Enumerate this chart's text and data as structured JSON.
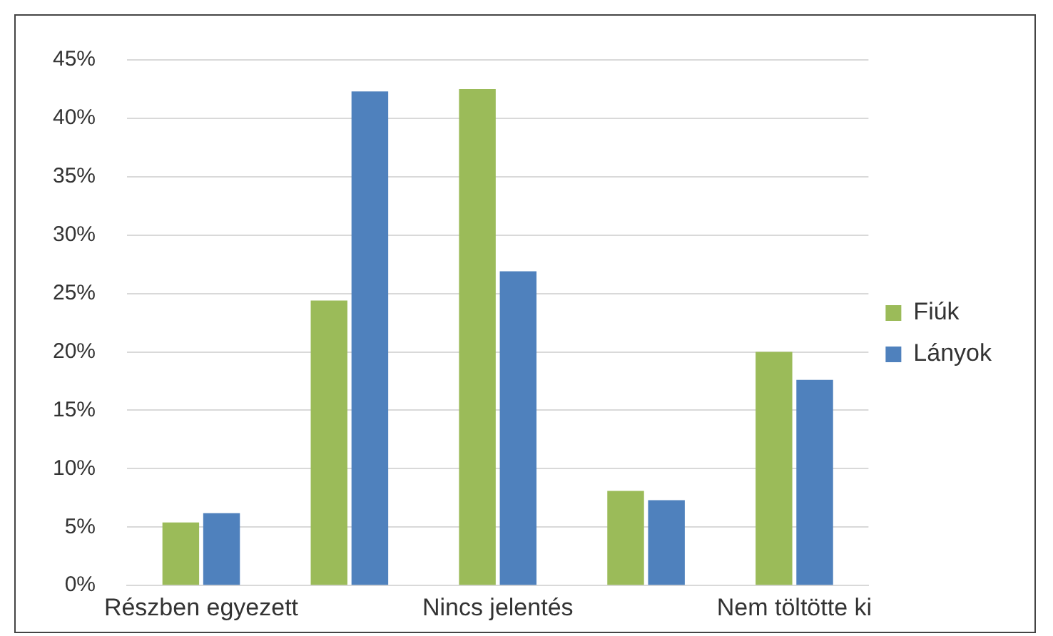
{
  "chart_data": {
    "type": "bar",
    "categories": [
      "Részben egyezett",
      null,
      "Nincs jelentés",
      null,
      "Nem töltötte ki"
    ],
    "series": [
      {
        "name": "Fiúk",
        "color": "#9bbb59",
        "values": [
          5.4,
          24.4,
          42.5,
          8.1,
          20.0
        ]
      },
      {
        "name": "Lányok",
        "color": "#4f81bd",
        "values": [
          6.2,
          42.3,
          26.9,
          7.3,
          17.6
        ]
      }
    ],
    "ylim": [
      0,
      45
    ],
    "yticks": [
      {
        "value": 0,
        "label": "0%"
      },
      {
        "value": 5,
        "label": "5%"
      },
      {
        "value": 10,
        "label": "10%"
      },
      {
        "value": 15,
        "label": "15%"
      },
      {
        "value": 20,
        "label": "20%"
      },
      {
        "value": 25,
        "label": "25%"
      },
      {
        "value": 30,
        "label": "30%"
      },
      {
        "value": 35,
        "label": "35%"
      },
      {
        "value": 40,
        "label": "40%"
      },
      {
        "value": 45,
        "label": "45%"
      }
    ],
    "grid": "y",
    "legend": "right"
  }
}
